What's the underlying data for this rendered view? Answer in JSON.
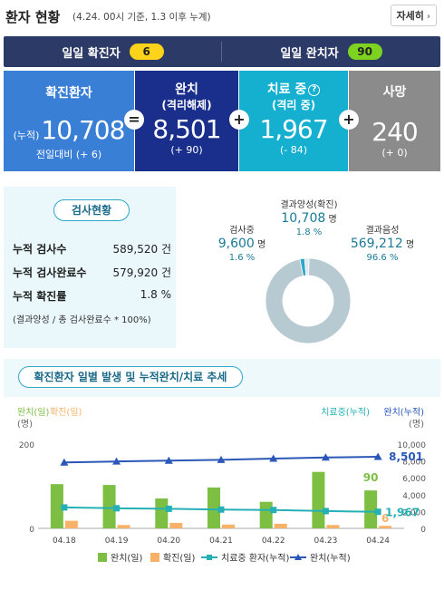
{
  "header": {
    "title": "환자 현황",
    "subtitle": "(4.24. 00시 기준, 1.3 이후 누계)",
    "more_label": "자세히",
    "more_chevron": "›"
  },
  "daily": {
    "confirmed_label": "일일 확진자",
    "confirmed_value": "6",
    "recovered_label": "일일 완치자",
    "recovered_value": "90"
  },
  "status": {
    "confirmed": {
      "label": "확진환자",
      "cum_label": "(누적)",
      "value": "10,708",
      "change": "전일대비 (+ 6)"
    },
    "released": {
      "label": "완치",
      "sub": "(격리해제)",
      "value": "8,501",
      "change": "(+ 90)"
    },
    "treating": {
      "label": "치료 중",
      "help": "?",
      "sub": "(격리 중)",
      "value": "1,967",
      "change": "(- 84)"
    },
    "deaths": {
      "label": "사망",
      "value": "240",
      "change": "(+ 0)"
    },
    "op_eq": "=",
    "op_plus": "+"
  },
  "tests": {
    "badge": "검사현황",
    "rows": [
      {
        "key": "누적 검사수",
        "value": "589,520 건"
      },
      {
        "key": "누적 검사완료수",
        "value": "579,920 건"
      },
      {
        "key": "누적 확진률",
        "value": "1.8 %"
      }
    ],
    "note": "(결과양성 / 총 검사완료수 * 100%)"
  },
  "donut": {
    "positive": {
      "label": "결과양성(확진)",
      "value": "10,708",
      "unit": "명",
      "pct": "1.8 %"
    },
    "testing": {
      "label": "검사중",
      "value": "9,600",
      "unit": "명",
      "pct": "1.6 %"
    },
    "negative": {
      "label": "결과음성",
      "value": "569,212",
      "unit": "명",
      "pct": "96.6 %"
    },
    "colors": {
      "negative": "#b7c9d1",
      "positive": "#2ea7c9",
      "testing": "#dfe8ec"
    }
  },
  "trend": {
    "title": "확진환자 일별 발생 및 누적완치/치료 추세"
  },
  "chart_data": {
    "type": "bar",
    "categories": [
      "04.18",
      "04.19",
      "04.20",
      "04.21",
      "04.22",
      "04.23",
      "04.24"
    ],
    "left_axis_label": "완치(일)확진(일)",
    "left_axis_label_parts": [
      "완치(일)",
      "확진(일)"
    ],
    "left_axis_unit": "(명)",
    "right_axis_label": "치료중(누적)완치(누적)",
    "right_axis_label_parts": [
      "치료중(누적)",
      "완치(누적)"
    ],
    "right_axis_unit": "(명)",
    "ylim_left": [
      0,
      200
    ],
    "left_ticks": [
      "200",
      "0"
    ],
    "ylim_right": [
      0,
      10000
    ],
    "right_ticks": [
      "10,000",
      "8,000",
      "6,000",
      "4,000",
      "2,000",
      "0"
    ],
    "series": [
      {
        "name": "완치(일)",
        "type": "bar",
        "axis": "left",
        "values": [
          105,
          103,
          71,
          97,
          63,
          134,
          90
        ]
      },
      {
        "name": "확진(일)",
        "type": "bar",
        "axis": "left",
        "values": [
          18,
          8,
          13,
          9,
          11,
          8,
          6
        ]
      },
      {
        "name": "치료중 환자(누적)",
        "type": "line",
        "axis": "right",
        "values": [
          2484,
          2385,
          2324,
          2233,
          2179,
          2051,
          1967
        ]
      },
      {
        "name": "완치(누적)",
        "type": "line",
        "axis": "right",
        "values": [
          7829,
          7937,
          8042,
          8127,
          8277,
          8411,
          8501
        ]
      }
    ],
    "annotations": {
      "recovered_daily_last": "90",
      "confirmed_daily_last": "6",
      "recovered_cum_last": "8,501",
      "treating_cum_last": "1,967"
    },
    "colors": {
      "recovered_daily": "#7cbf43",
      "confirmed_daily": "#f8b267",
      "treating_cum": "#25b0b6",
      "recovered_cum": "#2b57b8"
    }
  }
}
